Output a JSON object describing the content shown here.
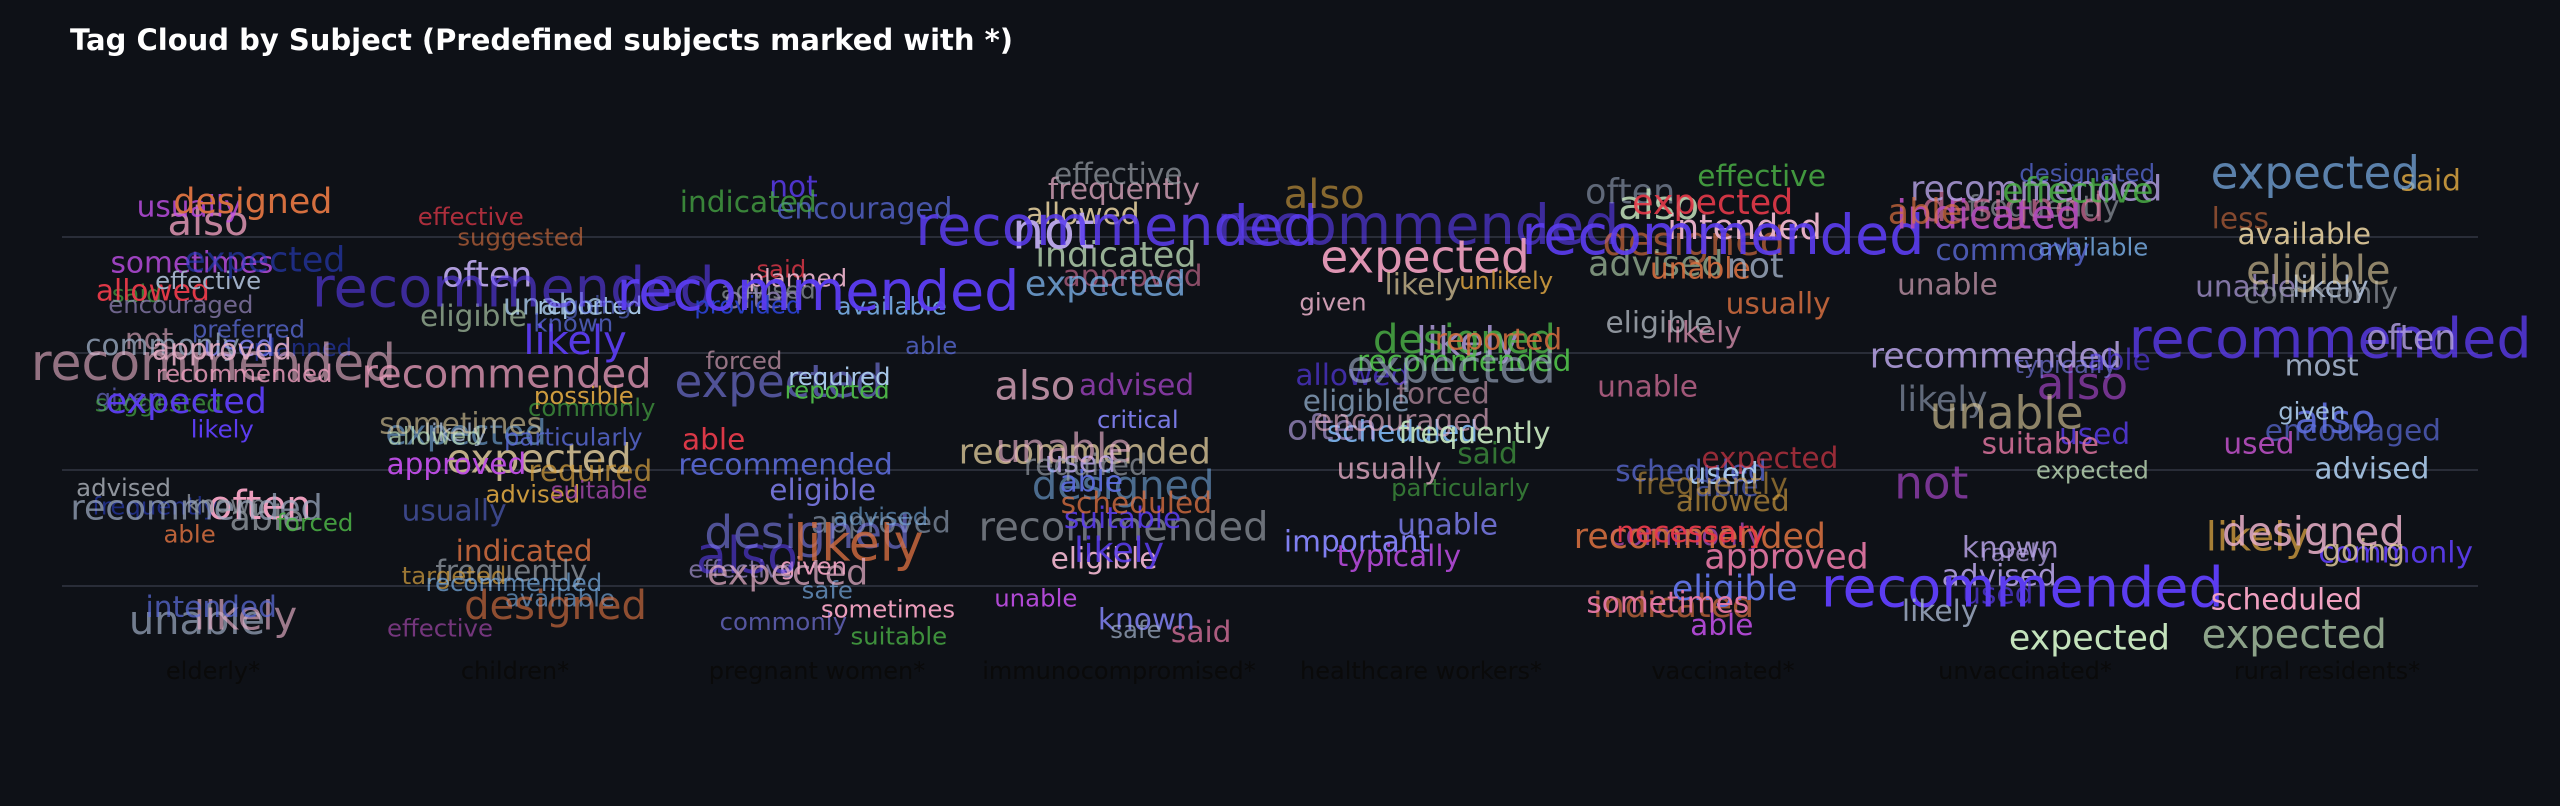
{
  "chart_data": {
    "type": "scatter",
    "title": "Tag Cloud by Subject (Predefined subjects marked with *)",
    "categories": [
      "elderly*",
      "children*",
      "pregnant women*",
      "immunocompromised*",
      "healthcare workers*",
      "vaccinated*",
      "unvaccinated*",
      "rural residents*"
    ],
    "grid": true,
    "legend": "none",
    "colors": {
      "background": "#0e1117",
      "title": "#ffffff",
      "category_label": "#0a0a0a",
      "gridline": "#3a3f4b"
    },
    "palette": [
      "#5b3cf0",
      "#e83a4a",
      "#e879a6",
      "#a2b1c9",
      "#7f7ff0",
      "#4db848",
      "#b9a5e8",
      "#5e6fe0",
      "#c14fe8",
      "#a8c8e8",
      "#d4a040",
      "#e8d2a0",
      "#c8e8c0",
      "#e8b0c8",
      "#b04cb8",
      "#2a3fc8",
      "#d87040",
      "#7ab0e8",
      "#9aa0a8",
      "#f0a0c0"
    ],
    "words_by_category": [
      [
        [
          "advised",
          2
        ],
        [
          "able",
          2
        ],
        [
          "given",
          2
        ],
        [
          "also",
          5
        ],
        [
          "said",
          2
        ],
        [
          "not",
          3
        ],
        [
          "able",
          4
        ],
        [
          "unable",
          5
        ],
        [
          "likely",
          5
        ],
        [
          "usually",
          3
        ],
        [
          "sometimes",
          3
        ],
        [
          "used",
          3
        ],
        [
          "preferred",
          2
        ],
        [
          "frequently",
          2
        ],
        [
          "intended",
          3
        ],
        [
          "commonly",
          3
        ],
        [
          "planned",
          2
        ],
        [
          "allowed",
          3
        ],
        [
          "often",
          5
        ],
        [
          "likely",
          2
        ],
        [
          "recommended",
          4
        ],
        [
          "suggested",
          2
        ],
        [
          "known",
          2
        ],
        [
          "approved",
          3
        ],
        [
          "forced",
          2
        ],
        [
          "designed",
          4
        ],
        [
          "expected",
          4
        ],
        [
          "effective",
          2
        ],
        [
          "recommended",
          7
        ],
        [
          "encouraged",
          2
        ],
        [
          "expected",
          4
        ],
        [
          "recommended",
          2
        ]
      ],
      [
        [
          "expected",
          4
        ],
        [
          "advised",
          2
        ],
        [
          "likely",
          2
        ],
        [
          "sometimes",
          3
        ],
        [
          "expected",
          5
        ],
        [
          "effective",
          2
        ],
        [
          "often",
          4
        ],
        [
          "indicated",
          3
        ],
        [
          "unable",
          3
        ],
        [
          "available",
          2
        ],
        [
          "possible",
          2
        ],
        [
          "reported",
          2
        ],
        [
          "going",
          2
        ],
        [
          "frequently",
          3
        ],
        [
          "particularly",
          2
        ],
        [
          "effective",
          2
        ],
        [
          "eligible",
          3
        ],
        [
          "designed",
          5
        ],
        [
          "commonly",
          2
        ],
        [
          "recommended",
          5
        ],
        [
          "allowed",
          2
        ],
        [
          "likely",
          5
        ],
        [
          "approved",
          3
        ],
        [
          "suggested",
          2
        ],
        [
          "targeted",
          2
        ],
        [
          "required",
          3
        ],
        [
          "suitable",
          2
        ],
        [
          "known",
          2
        ],
        [
          "usually",
          3
        ],
        [
          "recommended",
          2
        ],
        [
          "recommended",
          8
        ]
      ],
      [
        [
          "said",
          2
        ],
        [
          "often",
          3
        ],
        [
          "advised",
          2
        ],
        [
          "given",
          2
        ],
        [
          "provided",
          2
        ],
        [
          "effective",
          2
        ],
        [
          "also",
          7
        ],
        [
          "approved",
          3
        ],
        [
          "expected",
          6
        ],
        [
          "reported",
          2
        ],
        [
          "available",
          2
        ],
        [
          "encouraged",
          3
        ],
        [
          "suitable",
          2
        ],
        [
          "forced",
          2
        ],
        [
          "recommended",
          3
        ],
        [
          "able",
          2
        ],
        [
          "required",
          2
        ],
        [
          "eligible",
          3
        ],
        [
          "commonly",
          2
        ],
        [
          "not",
          3
        ],
        [
          "indicated",
          3
        ],
        [
          "sometimes",
          2
        ],
        [
          "designed",
          6
        ],
        [
          "able",
          3
        ],
        [
          "likely",
          7
        ],
        [
          "planned",
          2
        ],
        [
          "advised",
          2
        ],
        [
          "safe",
          2
        ],
        [
          "expected",
          4
        ],
        [
          "recommended",
          8
        ]
      ],
      [
        [
          "recommended",
          5
        ],
        [
          "unable",
          2
        ],
        [
          "also",
          5
        ],
        [
          "frequently",
          3
        ],
        [
          "critical",
          2
        ],
        [
          "eligible",
          3
        ],
        [
          "suitable",
          3
        ],
        [
          "allowed",
          3
        ],
        [
          "said",
          3
        ],
        [
          "recommended",
          4
        ],
        [
          "used",
          3
        ],
        [
          "likely",
          4
        ],
        [
          "approved",
          3
        ],
        [
          "indicated",
          4
        ],
        [
          "designed",
          5
        ],
        [
          "unable",
          5
        ],
        [
          "not",
          7
        ],
        [
          "expected",
          4
        ],
        [
          "advised",
          3
        ],
        [
          "effective",
          3
        ],
        [
          "scheduled",
          3
        ],
        [
          "known",
          3
        ],
        [
          "recommended",
          8
        ],
        [
          "able",
          3
        ],
        [
          "required",
          3
        ],
        [
          "safe",
          2
        ]
      ],
      [
        [
          "scheduled",
          3
        ],
        [
          "forced",
          3
        ],
        [
          "likely",
          5
        ],
        [
          "designed",
          5
        ],
        [
          "eligible",
          3
        ],
        [
          "particularly",
          2
        ],
        [
          "allowed",
          3
        ],
        [
          "recommended",
          3
        ],
        [
          "often",
          4
        ],
        [
          "recommended",
          8
        ],
        [
          "expected",
          6
        ],
        [
          "expected",
          6
        ],
        [
          "unable",
          3
        ],
        [
          "encouraged",
          3
        ],
        [
          "reported",
          3
        ],
        [
          "said",
          3
        ],
        [
          "important",
          3
        ],
        [
          "frequently",
          3
        ],
        [
          "usually",
          3
        ],
        [
          "likely",
          3
        ],
        [
          "given",
          2
        ],
        [
          "unlikely",
          2
        ],
        [
          "typically",
          3
        ],
        [
          "also",
          5
        ]
      ],
      [
        [
          "designed",
          5
        ],
        [
          "scheduled",
          3
        ],
        [
          "eligible",
          3
        ],
        [
          "effective",
          3
        ],
        [
          "allowed",
          3
        ],
        [
          "indicated",
          4
        ],
        [
          "advised",
          4
        ],
        [
          "used",
          3
        ],
        [
          "commonly",
          3
        ],
        [
          "recommended",
          4
        ],
        [
          "intended",
          4
        ],
        [
          "often",
          4
        ],
        [
          "able",
          3
        ],
        [
          "usually",
          3
        ],
        [
          "also",
          5
        ],
        [
          "necessary",
          3
        ],
        [
          "unable",
          3
        ],
        [
          "expected",
          4
        ],
        [
          "eligible",
          4
        ],
        [
          "able",
          3
        ],
        [
          "likely",
          3
        ],
        [
          "unable",
          3
        ],
        [
          "expected",
          3
        ],
        [
          "not",
          4
        ],
        [
          "frequently",
          3
        ],
        [
          "sometimes",
          3
        ],
        [
          "approved",
          4
        ],
        [
          "recommended",
          8
        ]
      ],
      [
        [
          "expected",
          2
        ],
        [
          "advised",
          3
        ],
        [
          "also",
          6
        ],
        [
          "unable",
          3
        ],
        [
          "designated",
          2
        ],
        [
          "used",
          3
        ],
        [
          "frequently",
          3
        ],
        [
          "available",
          2
        ],
        [
          "recommended",
          4
        ],
        [
          "likely",
          4
        ],
        [
          "designed",
          5
        ],
        [
          "expected",
          4
        ],
        [
          "indicated",
          5
        ],
        [
          "recommended",
          8
        ],
        [
          "unable",
          6
        ],
        [
          "not",
          6
        ],
        [
          "commonly",
          3
        ],
        [
          "able",
          3
        ],
        [
          "typically",
          2
        ],
        [
          "suitable",
          3
        ],
        [
          "known",
          3
        ],
        [
          "likely",
          3
        ],
        [
          "recommended",
          4
        ],
        [
          "effective",
          4
        ],
        [
          "rarely",
          2
        ],
        [
          "able",
          4
        ],
        [
          "used",
          3
        ]
      ],
      [
        [
          "advised",
          3
        ],
        [
          "unable",
          3
        ],
        [
          "likely",
          3
        ],
        [
          "most",
          3
        ],
        [
          "commonly",
          3
        ],
        [
          "likely",
          5
        ],
        [
          "said",
          3
        ],
        [
          "encouraged",
          3
        ],
        [
          "expected",
          6
        ],
        [
          "less",
          3
        ],
        [
          "expected",
          5
        ],
        [
          "eligible",
          5
        ],
        [
          "available",
          3
        ],
        [
          "recommended",
          8
        ],
        [
          "commonly",
          3
        ],
        [
          "often",
          4
        ],
        [
          "scheduled",
          3
        ],
        [
          "also",
          5
        ],
        [
          "designed",
          5
        ],
        [
          "used",
          3
        ],
        [
          "given",
          2
        ],
        [
          "going",
          3
        ]
      ]
    ]
  }
}
